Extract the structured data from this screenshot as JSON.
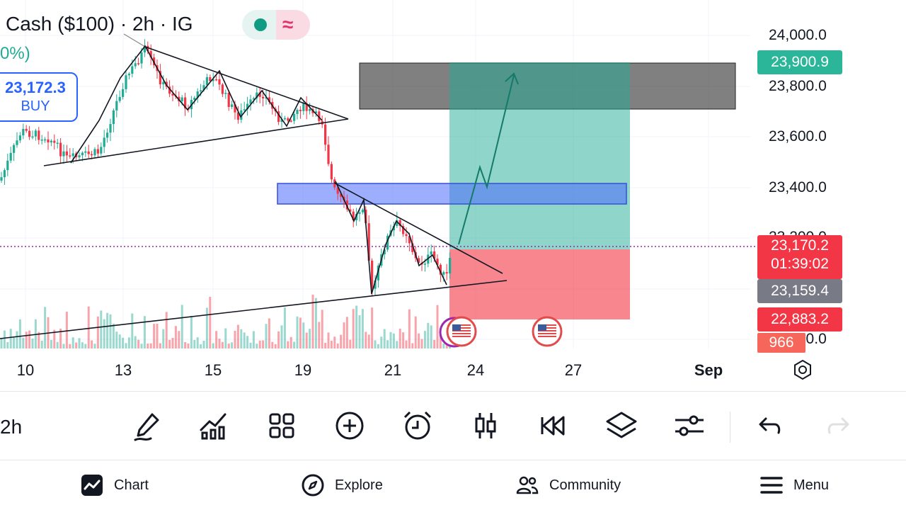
{
  "header": {
    "title": "Cash ($100) · 2h · IG",
    "change": "0%)"
  },
  "position": {
    "price": "23,172.3",
    "side": "BUY"
  },
  "price_scale": [
    "24,000.0",
    "23,800.0",
    "23,600.0",
    "23,400.0",
    "23,200.0",
    "22,800.0"
  ],
  "tags": {
    "target": "23,900.9",
    "current": "23,170.2",
    "countdown": "01:39:02",
    "mid": "23,159.4",
    "stop": "22,883.2",
    "volume": "966"
  },
  "date_axis": [
    "10",
    "13",
    "15",
    "19",
    "21",
    "24",
    "27",
    "Sep"
  ],
  "colors": {
    "up": "#22ab94",
    "down": "#f23645",
    "target_zone": "#22ab94",
    "stop_zone": "#f23645",
    "supply_zone": "#555555",
    "order_block": "#4d6bff"
  },
  "toolbar": {
    "timeframe": "2h",
    "tools": [
      "draw-icon",
      "indicators-icon",
      "layouts-icon",
      "add-icon",
      "alert-icon",
      "chart-type-icon",
      "replay-icon",
      "layers-icon",
      "settings-sliders-icon",
      "undo-icon",
      "redo-icon"
    ]
  },
  "nav": {
    "chart": "Chart",
    "explore": "Explore",
    "community": "Community",
    "menu": "Menu"
  }
}
